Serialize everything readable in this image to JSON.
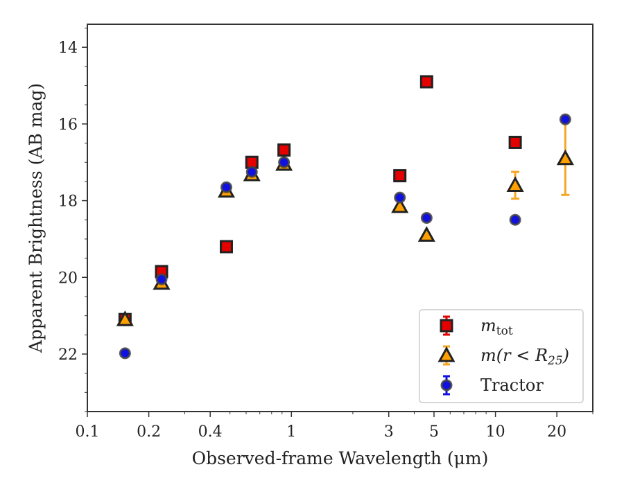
{
  "chart_data": {
    "type": "scatter",
    "title": "",
    "xlabel": "Observed-frame Wavelength (μm)",
    "ylabel": "Apparent Brightness (AB mag)",
    "xscale": "log",
    "xlim": [
      0.1,
      30
    ],
    "ylim": [
      23.5,
      13.4
    ],
    "y_inverted": true,
    "x_ticks": [
      {
        "value": 0.1,
        "label": "0.1"
      },
      {
        "value": 0.2,
        "label": "0.2"
      },
      {
        "value": 0.4,
        "label": "0.4"
      },
      {
        "value": 1,
        "label": "1"
      },
      {
        "value": 3,
        "label": "3"
      },
      {
        "value": 5,
        "label": "5"
      },
      {
        "value": 10,
        "label": "10"
      },
      {
        "value": 20,
        "label": "20"
      }
    ],
    "x_minor_ticks": [
      0.3,
      0.5,
      0.6,
      0.7,
      0.8,
      0.9,
      2,
      4,
      6,
      7,
      8,
      9,
      30
    ],
    "y_ticks": [
      {
        "value": 14,
        "label": "14"
      },
      {
        "value": 16,
        "label": "16"
      },
      {
        "value": 18,
        "label": "18"
      },
      {
        "value": 20,
        "label": "20"
      },
      {
        "value": 22,
        "label": "22"
      }
    ],
    "grid": false,
    "legend_position": "lower-right",
    "legend": {
      "entries": [
        {
          "key": "m_tot",
          "base": "m",
          "sub": "tot",
          "tail": ""
        },
        {
          "key": "m_r25",
          "base": "m(r < R",
          "sub": "25",
          "tail": ")"
        },
        {
          "key": "tractor",
          "base": "Tractor",
          "sub": "",
          "tail": ""
        }
      ]
    },
    "colors": {
      "m_tot": "#e50000",
      "m_r25": "#ffa000",
      "tractor": "#1010e0",
      "m_r25_err": "#f5a623",
      "edge": "#222222"
    },
    "series": [
      {
        "key": "m_tot",
        "marker": "square",
        "points": [
          {
            "x": 0.153,
            "y": 21.1
          },
          {
            "x": 0.231,
            "y": 19.85
          },
          {
            "x": 0.48,
            "y": 19.2
          },
          {
            "x": 0.64,
            "y": 17.0
          },
          {
            "x": 0.92,
            "y": 16.68
          },
          {
            "x": 3.4,
            "y": 17.35
          },
          {
            "x": 4.6,
            "y": 14.9
          },
          {
            "x": 12.5,
            "y": 16.48
          }
        ]
      },
      {
        "key": "m_r25",
        "marker": "triangle",
        "points": [
          {
            "x": 0.153,
            "y": 21.1
          },
          {
            "x": 0.231,
            "y": 20.15
          },
          {
            "x": 0.48,
            "y": 17.75
          },
          {
            "x": 0.64,
            "y": 17.32
          },
          {
            "x": 0.92,
            "y": 17.05
          },
          {
            "x": 3.4,
            "y": 18.15
          },
          {
            "x": 4.6,
            "y": 18.9
          },
          {
            "x": 12.5,
            "y": 17.6,
            "err": 0.35
          },
          {
            "x": 22.0,
            "y": 16.9,
            "err": 0.95
          }
        ]
      },
      {
        "key": "tractor",
        "marker": "circle",
        "points": [
          {
            "x": 0.153,
            "y": 21.98
          },
          {
            "x": 0.231,
            "y": 20.05
          },
          {
            "x": 0.48,
            "y": 17.65
          },
          {
            "x": 0.64,
            "y": 17.25
          },
          {
            "x": 0.92,
            "y": 17.0
          },
          {
            "x": 3.4,
            "y": 17.92
          },
          {
            "x": 4.6,
            "y": 18.45
          },
          {
            "x": 12.5,
            "y": 18.5
          },
          {
            "x": 22.0,
            "y": 15.88
          }
        ]
      }
    ]
  }
}
